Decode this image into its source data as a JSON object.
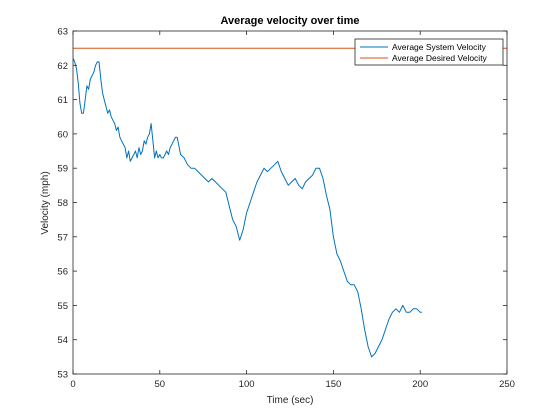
{
  "chart_data": {
    "type": "line",
    "title": "Average velocity over time",
    "xlabel": "Time (sec)",
    "ylabel": "Velocity (mph)",
    "xlim": [
      0,
      250
    ],
    "ylim": [
      53,
      63
    ],
    "xticks": [
      0,
      50,
      100,
      150,
      200,
      250
    ],
    "yticks": [
      53,
      54,
      55,
      56,
      57,
      58,
      59,
      60,
      61,
      62,
      63
    ],
    "grid": false,
    "legend_position": "top-right",
    "series": [
      {
        "name": "Average System Velocity",
        "color": "#0072BD",
        "x": [
          0,
          1,
          2,
          3,
          4,
          5,
          6,
          7,
          8,
          9,
          10,
          11,
          12,
          13,
          14,
          15,
          16,
          17,
          18,
          19,
          20,
          21,
          22,
          23,
          24,
          25,
          26,
          27,
          28,
          29,
          30,
          31,
          32,
          33,
          34,
          35,
          36,
          37,
          38,
          39,
          40,
          41,
          42,
          43,
          44,
          45,
          46,
          47,
          48,
          49,
          50,
          51,
          52,
          53,
          54,
          55,
          56,
          57,
          58,
          59,
          60,
          62,
          64,
          66,
          68,
          70,
          72,
          74,
          76,
          78,
          80,
          82,
          84,
          86,
          88,
          90,
          92,
          94,
          96,
          98,
          100,
          102,
          104,
          106,
          108,
          110,
          112,
          114,
          116,
          118,
          120,
          122,
          124,
          126,
          128,
          130,
          132,
          134,
          136,
          138,
          140,
          142,
          144,
          146,
          148,
          150,
          152,
          154,
          156,
          158,
          160,
          162,
          164,
          166,
          168,
          170,
          172,
          174,
          176,
          178,
          180,
          182,
          184,
          186,
          188,
          190,
          192,
          194,
          196,
          198,
          200,
          201
        ],
        "y": [
          62.2,
          62.1,
          61.9,
          61.5,
          60.9,
          60.6,
          60.6,
          61.0,
          61.4,
          61.3,
          61.6,
          61.7,
          61.8,
          62.0,
          62.1,
          62.1,
          61.6,
          61.2,
          61.0,
          60.8,
          60.6,
          60.7,
          60.5,
          60.4,
          60.3,
          60.1,
          60.2,
          59.9,
          59.8,
          59.7,
          59.6,
          59.3,
          59.5,
          59.2,
          59.3,
          59.4,
          59.5,
          59.3,
          59.6,
          59.4,
          59.5,
          59.8,
          59.7,
          59.9,
          60.0,
          60.3,
          59.8,
          59.3,
          59.5,
          59.3,
          59.4,
          59.3,
          59.3,
          59.4,
          59.5,
          59.4,
          59.6,
          59.7,
          59.8,
          59.9,
          59.9,
          59.4,
          59.3,
          59.1,
          59.0,
          59.0,
          58.9,
          58.8,
          58.7,
          58.6,
          58.7,
          58.6,
          58.5,
          58.4,
          58.3,
          57.9,
          57.5,
          57.3,
          56.9,
          57.2,
          57.7,
          58.0,
          58.3,
          58.6,
          58.8,
          59.0,
          58.9,
          59.0,
          59.1,
          59.2,
          58.9,
          58.7,
          58.5,
          58.6,
          58.7,
          58.5,
          58.4,
          58.6,
          58.7,
          58.8,
          59.0,
          59.0,
          58.7,
          58.2,
          57.8,
          57.0,
          56.5,
          56.3,
          56.0,
          55.7,
          55.6,
          55.6,
          55.4,
          54.9,
          54.3,
          53.8,
          53.5,
          53.6,
          53.8,
          54.0,
          54.3,
          54.6,
          54.8,
          54.9,
          54.8,
          55.0,
          54.8,
          54.8,
          54.9,
          54.9,
          54.8,
          54.8
        ]
      },
      {
        "name": "Average Desired Velocity",
        "color": "#D95319",
        "x": [
          0,
          250
        ],
        "y": [
          62.5,
          62.5
        ]
      }
    ]
  }
}
